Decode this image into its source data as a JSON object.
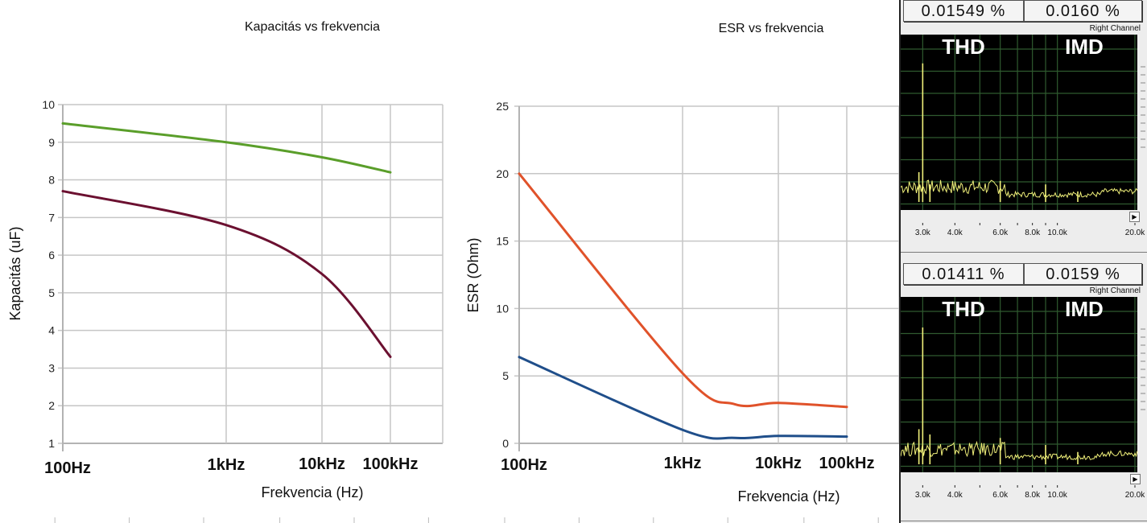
{
  "chart_data": [
    {
      "type": "line",
      "title": "Kapacitás vs frekvencia",
      "xlabel": "Frekvencia (Hz)",
      "ylabel": "Kapacitás (uF)",
      "xscale": "log",
      "x": [
        100,
        1000,
        10000,
        100000
      ],
      "x_tick_labels": [
        "100Hz",
        "1kHz",
        "10kHz",
        "100kHz"
      ],
      "ylim": [
        1,
        10
      ],
      "y_ticks": [
        1,
        2,
        3,
        4,
        5,
        6,
        7,
        8,
        9,
        10
      ],
      "grid": true,
      "legend": "none",
      "series": [
        {
          "name": "series-green",
          "color": "#5a9e2a",
          "values": [
            9.5,
            9.0,
            8.6,
            8.2
          ]
        },
        {
          "name": "series-darkred",
          "color": "#6b1030",
          "values": [
            7.7,
            6.8,
            5.5,
            3.3
          ]
        }
      ]
    },
    {
      "type": "line",
      "title": "ESR vs frekvencia",
      "xlabel": "Frekvencia (Hz)",
      "ylabel": "ESR (Ohm)",
      "xscale": "log",
      "x": [
        100,
        1000,
        3000,
        10000,
        100000
      ],
      "x_tick_labels": [
        "100Hz",
        "1kHz",
        "10kHz",
        "100kHz"
      ],
      "x_tick_values": [
        100,
        1000,
        10000,
        100000
      ],
      "ylim": [
        0,
        25
      ],
      "y_ticks": [
        0,
        5,
        10,
        15,
        20,
        25
      ],
      "grid": true,
      "legend": "none",
      "series": [
        {
          "name": "series-orange",
          "color": "#e0522a",
          "values": [
            20,
            5.2,
            2.9,
            3.0,
            2.7
          ]
        },
        {
          "name": "series-blue",
          "color": "#1f4e8a",
          "values": [
            6.4,
            1.0,
            0.4,
            0.55,
            0.5
          ]
        }
      ]
    }
  ],
  "spectrum_panels": [
    {
      "thd_readout": "0.01549 %",
      "imd_readout": "0.0160 %",
      "channel": "Right Channel",
      "thd_label": "THD",
      "imd_label": "IMD",
      "x_tick_labels": [
        "3.0k",
        "4.0k",
        "6.0k",
        "8.0k",
        "10.0k",
        "20.0k"
      ],
      "trace_color": "#f0f07a",
      "grid_color": "#2f5a2f",
      "peaks": [
        {
          "freq_k": 3.0,
          "level": 0.79
        },
        {
          "freq_k": 2.9,
          "level": 0.17
        },
        {
          "freq_k": 3.2,
          "level": 0.1
        },
        {
          "freq_k": 6.0,
          "level": 0.12
        },
        {
          "freq_k": 9.0,
          "level": 0.1
        },
        {
          "freq_k": 12.0,
          "level": 0.06
        }
      ]
    },
    {
      "thd_readout": "0.01411 %",
      "imd_readout": "0.0159 %",
      "channel": "Right Channel",
      "thd_label": "THD",
      "imd_label": "IMD",
      "x_tick_labels": [
        "3.0k",
        "4.0k",
        "6.0k",
        "8.0k",
        "10.0k",
        "20.0k"
      ],
      "trace_color": "#f0f07a",
      "grid_color": "#2f5a2f",
      "peaks": [
        {
          "freq_k": 3.0,
          "level": 0.78
        },
        {
          "freq_k": 2.9,
          "level": 0.2
        },
        {
          "freq_k": 3.2,
          "level": 0.17
        },
        {
          "freq_k": 6.0,
          "level": 0.15
        },
        {
          "freq_k": 9.0,
          "level": 0.11
        },
        {
          "freq_k": 12.0,
          "level": 0.07
        }
      ]
    }
  ]
}
